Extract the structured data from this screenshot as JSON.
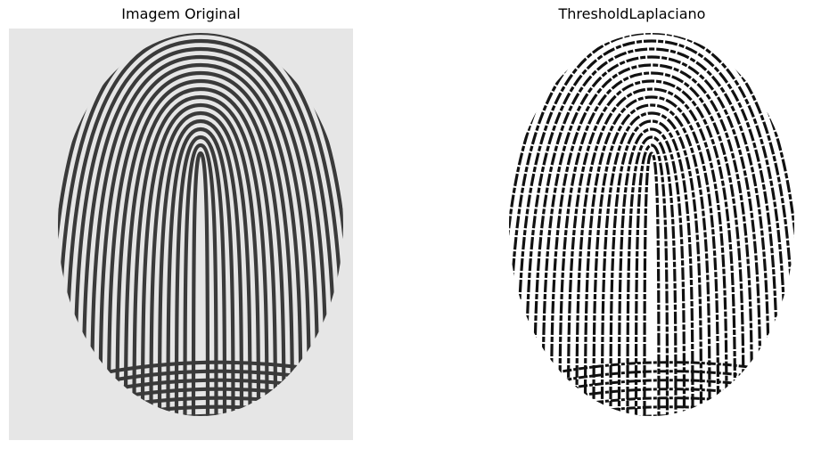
{
  "figure": {
    "panels": [
      {
        "title": "Imagem Original",
        "image_icon": "fingerprint-grayscale-icon"
      },
      {
        "title": "ThresholdLaplaciano",
        "image_icon": "fingerprint-threshold-icon"
      }
    ]
  },
  "colors": {
    "original_background": "#e6e6e6",
    "original_ridge": "#3a3a3a",
    "threshold_background": "#ffffff",
    "threshold_ridge": "#111111"
  }
}
